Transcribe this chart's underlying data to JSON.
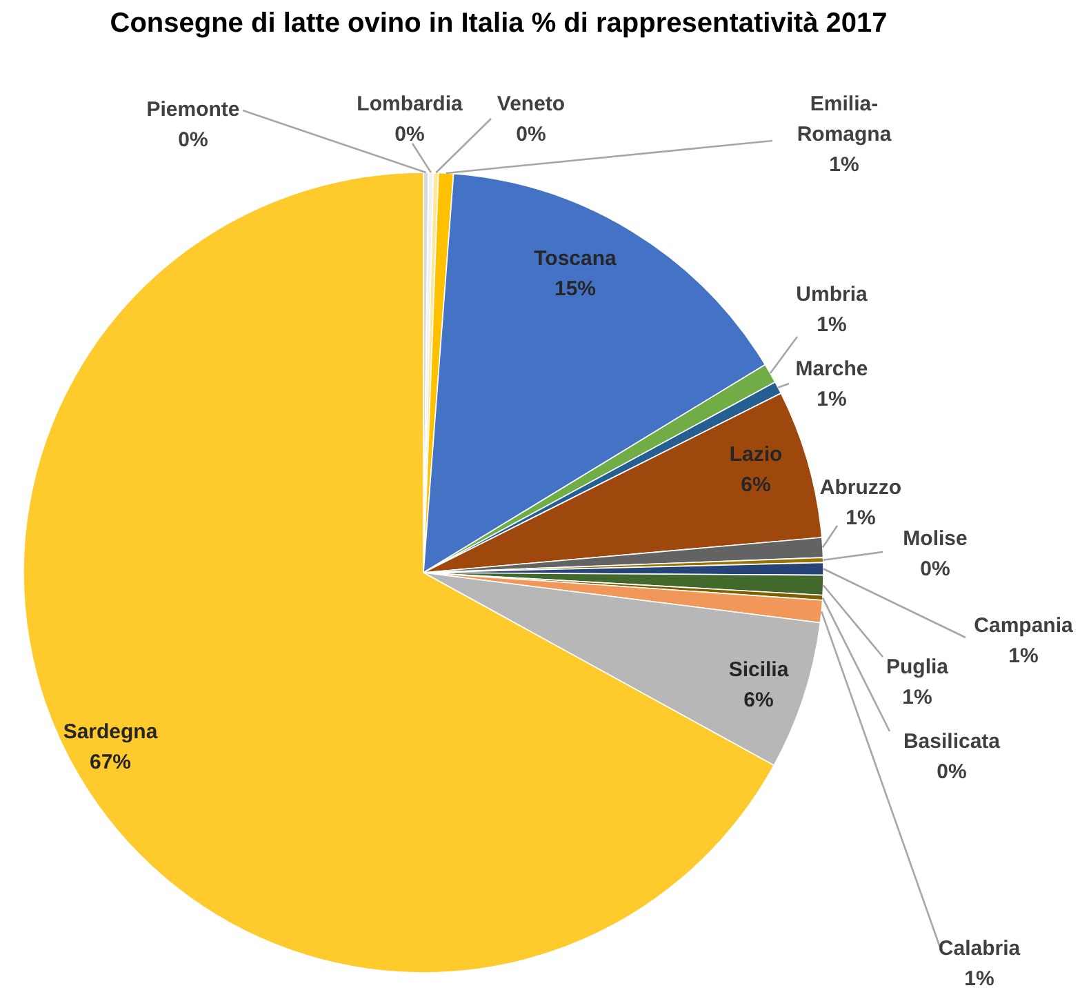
{
  "chart_data": {
    "type": "pie",
    "title": "Consegne di latte ovino in Italia  % di rappresentatività 2017",
    "categories": [
      "Piemonte",
      "Lombardia",
      "Veneto",
      "Emilia-Romagna",
      "Toscana",
      "Umbria",
      "Marche",
      "Lazio",
      "Abruzzo",
      "Molise",
      "Campania",
      "Puglia",
      "Basilicata",
      "Calabria",
      "Sicilia",
      "Sardegna"
    ],
    "values": [
      0.2,
      0.2,
      0.2,
      0.6,
      15.1,
      0.8,
      0.5,
      6.0,
      0.8,
      0.2,
      0.5,
      0.8,
      0.2,
      0.9,
      6.0,
      67.0
    ],
    "value_labels": [
      "0%",
      "0%",
      "0%",
      "1%",
      "15%",
      "1%",
      "1%",
      "6%",
      "1%",
      "0%",
      "1%",
      "1%",
      "0%",
      "1%",
      "6%",
      "67%"
    ],
    "colors": [
      "#d9d9d9",
      "#f2f2f2",
      "#ffe699",
      "#ffc000",
      "#4472c4",
      "#70ad47",
      "#255e91",
      "#9e480e",
      "#636363",
      "#997300",
      "#264478",
      "#43682b",
      "#7f6000",
      "#f1975a",
      "#b7b7b7",
      "#ffca2c"
    ],
    "legend": false
  }
}
